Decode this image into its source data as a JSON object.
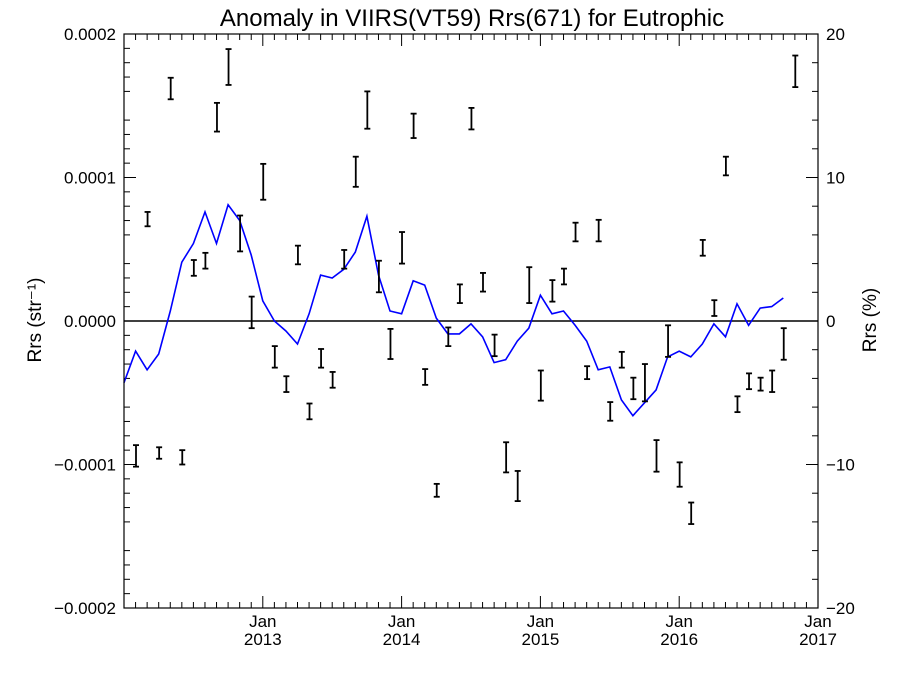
{
  "chart_data": {
    "type": "line",
    "title": "Anomaly in VIIRS(VT59) Rrs(671) for Eutrophic",
    "ylabel": "Rrs (str⁻¹)",
    "y2label": "Rrs (%)",
    "xlim": [
      "2012-01",
      "2017-01"
    ],
    "ylim": [
      -0.0002,
      0.0002
    ],
    "y2lim": [
      -20,
      20
    ],
    "x_ticks": [
      {
        "date": "2013-01",
        "month": "Jan",
        "year": "2013"
      },
      {
        "date": "2014-01",
        "month": "Jan",
        "year": "2014"
      },
      {
        "date": "2015-01",
        "month": "Jan",
        "year": "2015"
      },
      {
        "date": "2016-01",
        "month": "Jan",
        "year": "2016"
      },
      {
        "date": "2017-01",
        "month": "Jan",
        "year": "2017"
      }
    ],
    "y_ticks": [
      "0.0002",
      "0.0001",
      "0.0000",
      "−0.0001",
      "−0.0002"
    ],
    "y_tick_values": [
      0.0002,
      0.0001,
      0.0,
      -0.0001,
      -0.0002
    ],
    "y2_ticks": [
      "20",
      "10",
      "0",
      "−10",
      "−20"
    ],
    "y2_tick_values": [
      20,
      10,
      0,
      -10,
      -20
    ],
    "zero_line": 0.0,
    "series": [
      {
        "kind": "error_bars",
        "axis": "left",
        "color": "#000000",
        "points": [
          {
            "x": "2012-01",
            "y": -9.4e-05,
            "err": 7.5e-06
          },
          {
            "x": "2012-02",
            "y": 7.1e-05,
            "err": 5e-06
          },
          {
            "x": "2012-03",
            "y": -9.2e-05,
            "err": 4e-06
          },
          {
            "x": "2012-04",
            "y": 0.000162,
            "err": 7.5e-06
          },
          {
            "x": "2012-05",
            "y": -9.5e-05,
            "err": 5e-06
          },
          {
            "x": "2012-06",
            "y": 3.7e-05,
            "err": 5.5e-06
          },
          {
            "x": "2012-07",
            "y": 4.2e-05,
            "err": 5.5e-06
          },
          {
            "x": "2012-08",
            "y": 0.000142,
            "err": 1e-05
          },
          {
            "x": "2012-09",
            "y": 0.000177,
            "err": 1.25e-05
          },
          {
            "x": "2012-10",
            "y": 6.1e-05,
            "err": 1.25e-05
          },
          {
            "x": "2012-11",
            "y": 6e-06,
            "err": 1.1e-05
          },
          {
            "x": "2012-12",
            "y": 9.7e-05,
            "err": 1.25e-05
          },
          {
            "x": "2013-01",
            "y": -2.5e-05,
            "err": 7.5e-06
          },
          {
            "x": "2013-02",
            "y": -4.4e-05,
            "err": 5.5e-06
          },
          {
            "x": "2013-03",
            "y": 4.6e-05,
            "err": 6.5e-06
          },
          {
            "x": "2013-04",
            "y": -6.3e-05,
            "err": 5.5e-06
          },
          {
            "x": "2013-05",
            "y": -2.6e-05,
            "err": 6.5e-06
          },
          {
            "x": "2013-06",
            "y": -4.1e-05,
            "err": 5.5e-06
          },
          {
            "x": "2013-07",
            "y": 4.3e-05,
            "err": 6.5e-06
          },
          {
            "x": "2013-08",
            "y": 0.000104,
            "err": 1.05e-05
          },
          {
            "x": "2013-09",
            "y": 0.000147,
            "err": 1.3e-05
          },
          {
            "x": "2013-10",
            "y": 3.1e-05,
            "err": 1.1e-05
          },
          {
            "x": "2013-11",
            "y": -1.6e-05,
            "err": 1.05e-05
          },
          {
            "x": "2013-12",
            "y": 5.1e-05,
            "err": 1.1e-05
          },
          {
            "x": "2014-01",
            "y": 0.000136,
            "err": 8.5e-06
          },
          {
            "x": "2014-02",
            "y": -3.9e-05,
            "err": 5.5e-06
          },
          {
            "x": "2014-03",
            "y": -0.000118,
            "err": 4.5e-06
          },
          {
            "x": "2014-04",
            "y": -1.1e-05,
            "err": 6.5e-06
          },
          {
            "x": "2014-05",
            "y": 1.9e-05,
            "err": 6.5e-06
          },
          {
            "x": "2014-06",
            "y": 0.000141,
            "err": 7.5e-06
          },
          {
            "x": "2014-07",
            "y": 2.7e-05,
            "err": 6.5e-06
          },
          {
            "x": "2014-08",
            "y": -1.7e-05,
            "err": 7.5e-06
          },
          {
            "x": "2014-09",
            "y": -9.5e-05,
            "err": 1.05e-05
          },
          {
            "x": "2014-10",
            "y": -0.000115,
            "err": 1.05e-05
          },
          {
            "x": "2014-11",
            "y": 2.5e-05,
            "err": 1.25e-05
          },
          {
            "x": "2014-12",
            "y": -4.5e-05,
            "err": 1.05e-05
          },
          {
            "x": "2015-01",
            "y": 2.1e-05,
            "err": 7.5e-06
          },
          {
            "x": "2015-02",
            "y": 3.1e-05,
            "err": 5.5e-06
          },
          {
            "x": "2015-03",
            "y": 6.2e-05,
            "err": 6.5e-06
          },
          {
            "x": "2015-04",
            "y": -3.6e-05,
            "err": 4.5e-06
          },
          {
            "x": "2015-05",
            "y": 6.3e-05,
            "err": 7.5e-06
          },
          {
            "x": "2015-06",
            "y": -6.3e-05,
            "err": 6.5e-06
          },
          {
            "x": "2015-07",
            "y": -2.7e-05,
            "err": 5.5e-06
          },
          {
            "x": "2015-08",
            "y": -4.7e-05,
            "err": 7.5e-06
          },
          {
            "x": "2015-09",
            "y": -4.3e-05,
            "err": 1.3e-05
          },
          {
            "x": "2015-10",
            "y": -9.4e-05,
            "err": 1.1e-05
          },
          {
            "x": "2015-11",
            "y": -1.4e-05,
            "err": 1.1e-05
          },
          {
            "x": "2015-12",
            "y": -0.000107,
            "err": 8.5e-06
          },
          {
            "x": "2016-01",
            "y": -0.000134,
            "err": 7.5e-06
          },
          {
            "x": "2016-02",
            "y": 5.1e-05,
            "err": 5.5e-06
          },
          {
            "x": "2016-03",
            "y": 9e-06,
            "err": 5.5e-06
          },
          {
            "x": "2016-04",
            "y": 0.000108,
            "err": 6.5e-06
          },
          {
            "x": "2016-05",
            "y": -5.8e-05,
            "err": 5.5e-06
          },
          {
            "x": "2016-06",
            "y": -4.2e-05,
            "err": 5.5e-06
          },
          {
            "x": "2016-07",
            "y": -4.4e-05,
            "err": 4.5e-06
          },
          {
            "x": "2016-08",
            "y": -4.2e-05,
            "err": 7.5e-06
          },
          {
            "x": "2016-09",
            "y": -1.6e-05,
            "err": 1.1e-05
          },
          {
            "x": "2016-10",
            "y": 0.000174,
            "err": 1.1e-05
          }
        ]
      },
      {
        "kind": "line",
        "axis": "right",
        "color": "#0000ff",
        "points": [
          {
            "x": "2012-01",
            "y": -4.3
          },
          {
            "x": "2012-02",
            "y": -2.1
          },
          {
            "x": "2012-03",
            "y": -3.4
          },
          {
            "x": "2012-04",
            "y": -2.3
          },
          {
            "x": "2012-05",
            "y": 0.7
          },
          {
            "x": "2012-06",
            "y": 4.1
          },
          {
            "x": "2012-07",
            "y": 5.4
          },
          {
            "x": "2012-08",
            "y": 7.6
          },
          {
            "x": "2012-09",
            "y": 5.4
          },
          {
            "x": "2012-10",
            "y": 8.1
          },
          {
            "x": "2012-11",
            "y": 7.0
          },
          {
            "x": "2012-12",
            "y": 4.6
          },
          {
            "x": "2013-01",
            "y": 1.4
          },
          {
            "x": "2013-02",
            "y": 0.0
          },
          {
            "x": "2013-03",
            "y": -0.7
          },
          {
            "x": "2013-04",
            "y": -1.6
          },
          {
            "x": "2013-05",
            "y": 0.5
          },
          {
            "x": "2013-06",
            "y": 3.2
          },
          {
            "x": "2013-07",
            "y": 3.0
          },
          {
            "x": "2013-08",
            "y": 3.6
          },
          {
            "x": "2013-09",
            "y": 4.8
          },
          {
            "x": "2013-10",
            "y": 7.3
          },
          {
            "x": "2013-11",
            "y": 3.2
          },
          {
            "x": "2013-12",
            "y": 0.7
          },
          {
            "x": "2014-01",
            "y": 0.5
          },
          {
            "x": "2014-02",
            "y": 2.8
          },
          {
            "x": "2014-03",
            "y": 2.5
          },
          {
            "x": "2014-04",
            "y": 0.2
          },
          {
            "x": "2014-05",
            "y": -0.9
          },
          {
            "x": "2014-06",
            "y": -0.9
          },
          {
            "x": "2014-07",
            "y": -0.2
          },
          {
            "x": "2014-08",
            "y": -1.1
          },
          {
            "x": "2014-09",
            "y": -2.9
          },
          {
            "x": "2014-10",
            "y": -2.7
          },
          {
            "x": "2014-11",
            "y": -1.4
          },
          {
            "x": "2014-12",
            "y": -0.5
          },
          {
            "x": "2015-01",
            "y": 1.8
          },
          {
            "x": "2015-02",
            "y": 0.5
          },
          {
            "x": "2015-03",
            "y": 0.7
          },
          {
            "x": "2015-04",
            "y": -0.3
          },
          {
            "x": "2015-05",
            "y": -1.4
          },
          {
            "x": "2015-06",
            "y": -3.4
          },
          {
            "x": "2015-07",
            "y": -3.2
          },
          {
            "x": "2015-08",
            "y": -5.5
          },
          {
            "x": "2015-09",
            "y": -6.6
          },
          {
            "x": "2015-10",
            "y": -5.7
          },
          {
            "x": "2015-11",
            "y": -4.8
          },
          {
            "x": "2015-12",
            "y": -2.5
          },
          {
            "x": "2016-01",
            "y": -2.1
          },
          {
            "x": "2016-02",
            "y": -2.5
          },
          {
            "x": "2016-03",
            "y": -1.6
          },
          {
            "x": "2016-04",
            "y": -0.2
          },
          {
            "x": "2016-05",
            "y": -1.1
          },
          {
            "x": "2016-06",
            "y": 1.2
          },
          {
            "x": "2016-07",
            "y": -0.3
          },
          {
            "x": "2016-08",
            "y": 0.9
          },
          {
            "x": "2016-09",
            "y": 1.0
          },
          {
            "x": "2016-10",
            "y": 1.6
          }
        ]
      }
    ],
    "grid": false,
    "legend": "none"
  }
}
